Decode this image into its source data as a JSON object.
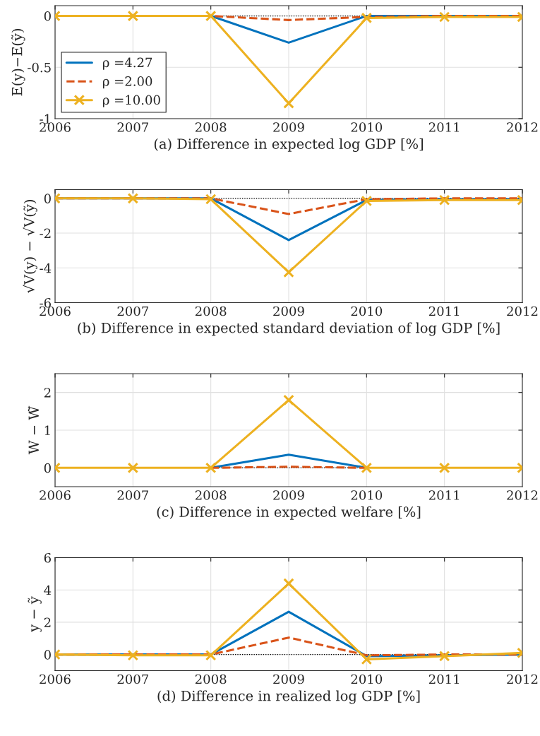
{
  "chart_data": [
    {
      "type": "line",
      "xlabel": "(a) Difference in expected log GDP [%]",
      "ylabel": "E(y)−E(ỹ)",
      "x": [
        2006,
        2007,
        2008,
        2009,
        2010,
        2011,
        2012
      ],
      "xlim": [
        2006,
        2012
      ],
      "xticks": [
        2006,
        2007,
        2008,
        2009,
        2010,
        2011,
        2012
      ],
      "ylim": [
        -1,
        0.1
      ],
      "yticks": [
        -1,
        -0.5,
        0
      ],
      "grid": true,
      "legend": "bottom left",
      "ref_lines": [
        {
          "axis": "y",
          "value": 0,
          "color": "#000000",
          "line_style": "dotted"
        }
      ],
      "series": [
        {
          "name": "ρ =4.27",
          "color": "#0072bd",
          "line_style": "solid",
          "marker": "none",
          "values": [
            0,
            0,
            0,
            -0.26,
            0,
            0,
            0
          ]
        },
        {
          "name": "ρ =2.00",
          "color": "#d95319",
          "line_style": "dashed",
          "marker": "none",
          "values": [
            0,
            0,
            0,
            -0.04,
            -0.01,
            0,
            0
          ]
        },
        {
          "name": "ρ =10.00",
          "color": "#edb120",
          "line_style": "solid",
          "marker": "cross",
          "values": [
            0,
            0,
            0,
            -0.85,
            -0.02,
            -0.01,
            -0.01
          ]
        }
      ]
    },
    {
      "type": "line",
      "xlabel": "(b) Difference in expected standard deviation of log GDP [%]",
      "ylabel": "√V(y) − √V(ỹ)",
      "x": [
        2006,
        2007,
        2008,
        2009,
        2010,
        2011,
        2012
      ],
      "xlim": [
        2006,
        2012
      ],
      "xticks": [
        2006,
        2007,
        2008,
        2009,
        2010,
        2011,
        2012
      ],
      "ylim": [
        -6,
        0.5
      ],
      "yticks": [
        -6,
        -4,
        -2,
        0
      ],
      "grid": true,
      "ref_lines": [
        {
          "axis": "y",
          "value": 0,
          "color": "#000000",
          "line_style": "dotted"
        }
      ],
      "series": [
        {
          "color": "#0072bd",
          "line_style": "solid",
          "marker": "none",
          "values": [
            0,
            0,
            0,
            -2.4,
            -0.1,
            -0.05,
            -0.05
          ]
        },
        {
          "color": "#d95319",
          "line_style": "dashed",
          "marker": "none",
          "values": [
            0,
            0,
            0,
            -0.9,
            -0.05,
            0,
            0
          ]
        },
        {
          "color": "#edb120",
          "line_style": "solid",
          "marker": "cross",
          "values": [
            0,
            0,
            -0.05,
            -4.25,
            -0.15,
            -0.1,
            -0.1
          ]
        }
      ]
    },
    {
      "type": "line",
      "xlabel": "(c) Difference in expected welfare [%]",
      "ylabel": "W − W̃",
      "x": [
        2006,
        2007,
        2008,
        2009,
        2010,
        2011,
        2012
      ],
      "xlim": [
        2006,
        2012
      ],
      "xticks": [
        2006,
        2007,
        2008,
        2009,
        2010,
        2011,
        2012
      ],
      "ylim": [
        -0.5,
        2.5
      ],
      "yticks": [
        0,
        1,
        2
      ],
      "grid": true,
      "ref_lines": [
        {
          "axis": "y",
          "value": 0,
          "color": "#000000",
          "line_style": "dotted"
        }
      ],
      "series": [
        {
          "color": "#0072bd",
          "line_style": "solid",
          "marker": "none",
          "values": [
            null,
            null,
            0,
            0.35,
            0,
            null,
            null
          ]
        },
        {
          "color": "#d95319",
          "line_style": "dashed",
          "marker": "none",
          "values": [
            null,
            null,
            0,
            0.03,
            0,
            null,
            null
          ]
        },
        {
          "color": "#edb120",
          "line_style": "solid",
          "marker": "cross",
          "values": [
            0,
            0,
            0,
            1.8,
            0,
            0,
            0
          ]
        }
      ]
    },
    {
      "type": "line",
      "xlabel": "(d) Difference in realized log GDP [%]",
      "ylabel": "y − ỹ",
      "x": [
        2006,
        2007,
        2008,
        2009,
        2010,
        2011,
        2012
      ],
      "xlim": [
        2006,
        2012
      ],
      "xticks": [
        2006,
        2007,
        2008,
        2009,
        2010,
        2011,
        2012
      ],
      "ylim": [
        -1,
        6
      ],
      "yticks": [
        0,
        2,
        4,
        6
      ],
      "grid": true,
      "ref_lines": [
        {
          "axis": "y",
          "value": 0,
          "color": "#000000",
          "line_style": "dotted"
        }
      ],
      "series": [
        {
          "color": "#0072bd",
          "line_style": "solid",
          "marker": "none",
          "values": [
            0,
            0,
            0,
            2.65,
            -0.1,
            -0.05,
            0
          ]
        },
        {
          "color": "#d95319",
          "line_style": "dashed",
          "marker": "none",
          "values": [
            0,
            0,
            0,
            1.05,
            -0.05,
            0,
            0
          ]
        },
        {
          "color": "#edb120",
          "line_style": "solid",
          "marker": "cross",
          "values": [
            0,
            -0.05,
            -0.05,
            4.4,
            -0.3,
            -0.1,
            0.1
          ]
        }
      ]
    }
  ]
}
